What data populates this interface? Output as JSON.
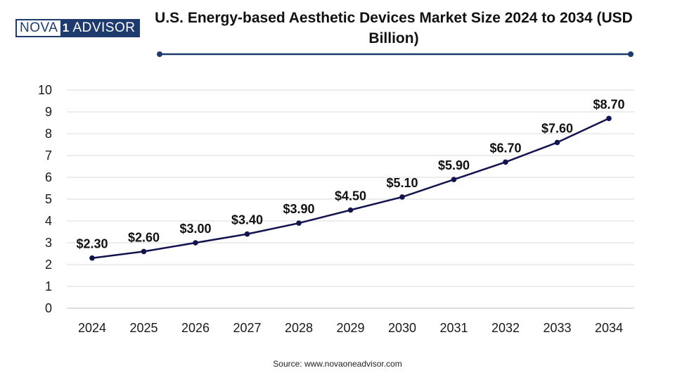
{
  "logo": {
    "part1": "NOVA",
    "part2": "1",
    "part3": "ADVISOR"
  },
  "source": "Source: www.novaoneadvisor.com",
  "colors": {
    "line": "#13134f",
    "grid": "#d9d9d9",
    "brand": "#1f3b6e"
  },
  "chart_data": {
    "type": "line",
    "title": "U.S. Energy-based Aesthetic Devices Market Size 2024 to 2034 (USD Billion)",
    "xlabel": "",
    "ylabel": "",
    "categories": [
      "2024",
      "2025",
      "2026",
      "2027",
      "2028",
      "2029",
      "2030",
      "2031",
      "2032",
      "2033",
      "2034"
    ],
    "values": [
      2.3,
      2.6,
      3.0,
      3.4,
      3.9,
      4.5,
      5.1,
      5.9,
      6.7,
      7.6,
      8.7
    ],
    "data_labels": [
      "$2.30",
      "$2.60",
      "$3.00",
      "$3.40",
      "$3.90",
      "$4.50",
      "$5.10",
      "$5.90",
      "$6.70",
      "$7.60",
      "$8.70"
    ],
    "yticks": [
      "0",
      "1",
      "2",
      "3",
      "4",
      "5",
      "6",
      "7",
      "8",
      "9",
      "10"
    ],
    "ylim": [
      0,
      10
    ],
    "grid": true,
    "legend": "none"
  }
}
